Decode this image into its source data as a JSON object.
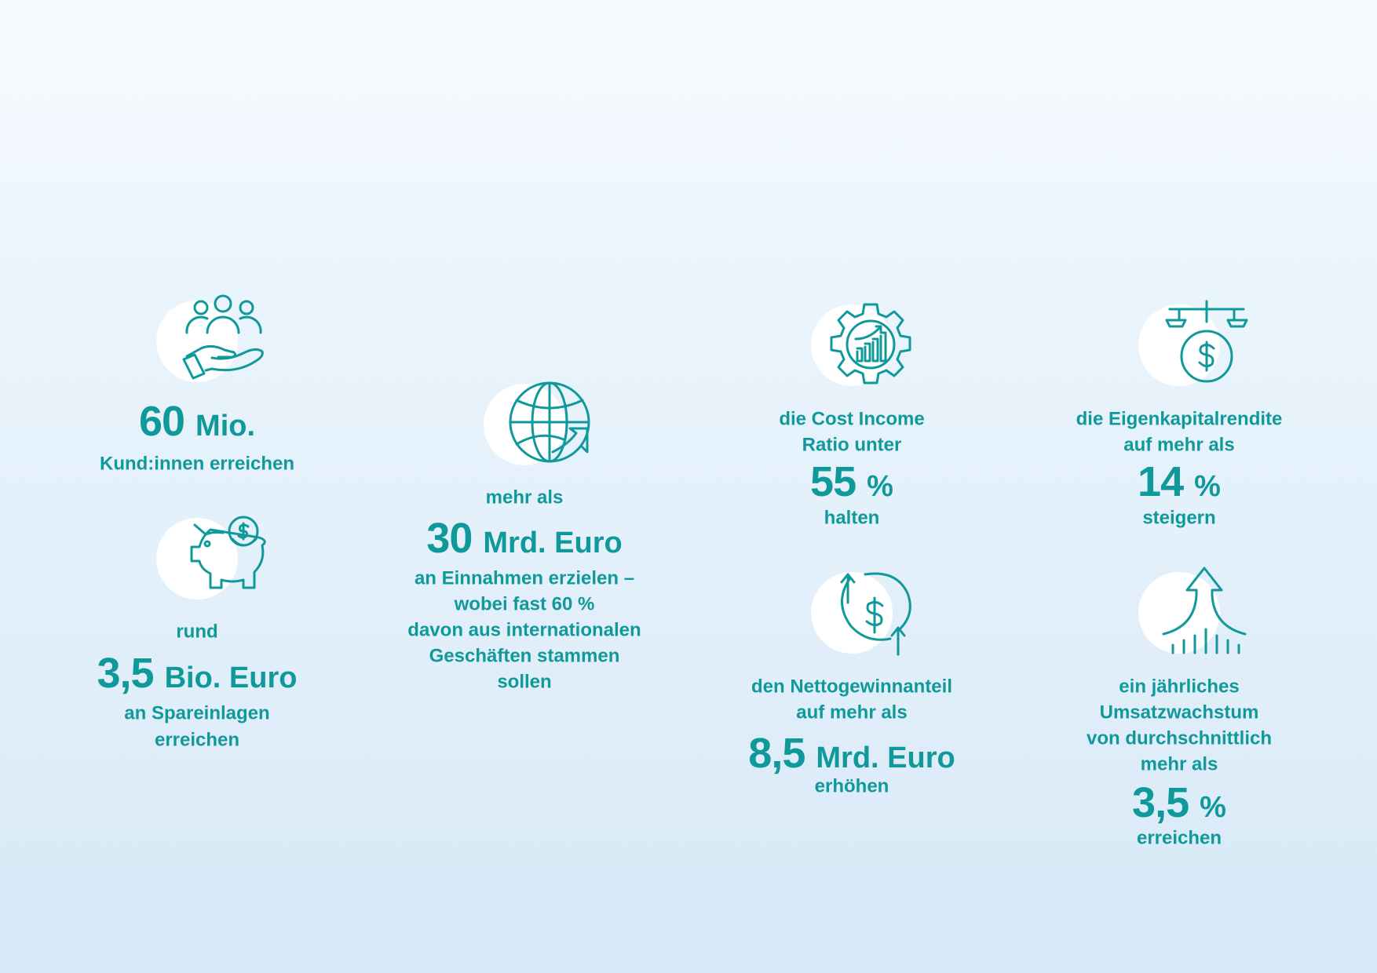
{
  "accent_color": "#10999b",
  "blocks": [
    {
      "icon": "people-in-hand-icon",
      "value": "60",
      "unit": "Mio.",
      "after": [
        "Kund:innen erreichen"
      ]
    },
    {
      "icon": "piggy-bank-icon",
      "before": [
        "rund"
      ],
      "value": "3,5",
      "unit": "Bio. Euro",
      "after": [
        "an Spareinlagen",
        "erreichen"
      ]
    },
    {
      "icon": "globe-arrow-icon",
      "before": [
        "mehr als"
      ],
      "value": "30",
      "unit": "Mrd. Euro",
      "after": [
        "an Einnahmen erzielen –",
        "wobei fast 60 %",
        "davon aus internationalen",
        "Geschäften stammen",
        "sollen"
      ]
    },
    {
      "icon": "gear-chart-icon",
      "before": [
        "die Cost Income",
        "Ratio unter"
      ],
      "value": "55",
      "unit": "%",
      "after": [
        "halten"
      ]
    },
    {
      "icon": "scale-dollar-icon",
      "before": [
        "die Eigenkapitalrendite",
        "auf mehr als"
      ],
      "value": "14",
      "unit": "%",
      "after": [
        "steigern"
      ]
    },
    {
      "icon": "dollar-cycle-icon",
      "before": [
        "den Nettogewinnanteil",
        "auf mehr als"
      ],
      "value": "8,5",
      "unit": "Mrd. Euro",
      "after": [
        "erhöhen"
      ]
    },
    {
      "icon": "growth-arrow-icon",
      "before": [
        "ein jährliches",
        "Umsatzwachstum",
        "von durchschnittlich",
        "mehr als"
      ],
      "value": "3,5",
      "unit": "%",
      "after": [
        "erreichen"
      ]
    }
  ]
}
